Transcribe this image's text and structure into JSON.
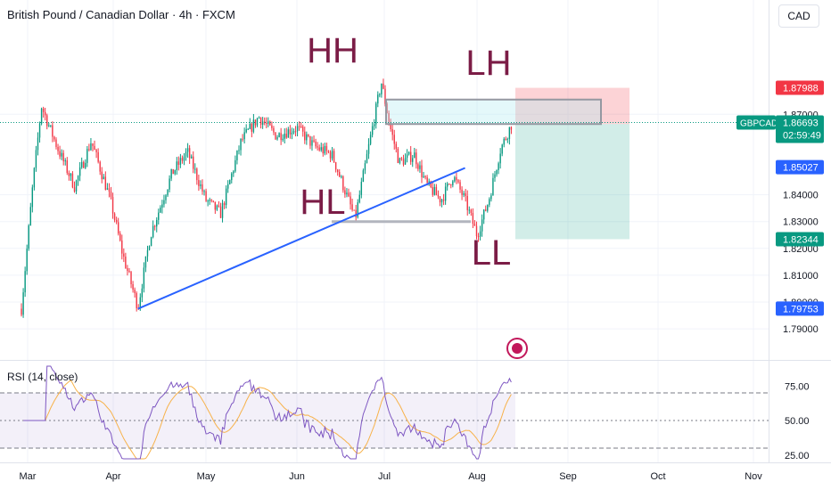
{
  "header": {
    "title": "British Pound / Canadian Dollar · 4h · FXCM",
    "currency": "CAD"
  },
  "rsi": {
    "label": "RSI (14, close)",
    "ticks": [
      "75.00",
      "50.00",
      "25.00"
    ]
  },
  "chart_data": {
    "type": "candlestick",
    "symbol": "GBPCAD",
    "timeframe": "4h",
    "x_tick_labels": [
      "Mar",
      "Apr",
      "May",
      "Jun",
      "Jul",
      "Aug",
      "Sep",
      "Oct",
      "Nov"
    ],
    "y_tick_labels": [
      "1.87000",
      "1.84000",
      "1.83000",
      "1.82000",
      "1.81000",
      "1.80000",
      "1.79000"
    ],
    "ylim": [
      1.785,
      1.885
    ],
    "price_path": [
      {
        "date": "Feb 26",
        "price": 1.7975
      },
      {
        "date": "Mar 3",
        "price": 1.845
      },
      {
        "date": "Mar 6",
        "price": 1.873
      },
      {
        "date": "Mar 12",
        "price": 1.857
      },
      {
        "date": "Mar 18",
        "price": 1.843
      },
      {
        "date": "Mar 24",
        "price": 1.86
      },
      {
        "date": "Mar 31",
        "price": 1.838
      },
      {
        "date": "Apr 4",
        "price": 1.818
      },
      {
        "date": "Apr 9",
        "price": 1.798
      },
      {
        "date": "Apr 13",
        "price": 1.825
      },
      {
        "date": "Apr 20",
        "price": 1.848
      },
      {
        "date": "Apr 25",
        "price": 1.856
      },
      {
        "date": "May 1",
        "price": 1.838
      },
      {
        "date": "May 6",
        "price": 1.833
      },
      {
        "date": "May 13",
        "price": 1.86
      },
      {
        "date": "May 19",
        "price": 1.869
      },
      {
        "date": "May 25",
        "price": 1.862
      },
      {
        "date": "Jun 1",
        "price": 1.865
      },
      {
        "date": "Jun 7",
        "price": 1.858
      },
      {
        "date": "Jun 13",
        "price": 1.855
      },
      {
        "date": "Jun 18",
        "price": 1.84
      },
      {
        "date": "Jun 21",
        "price": 1.831
      },
      {
        "date": "Jun 26",
        "price": 1.86
      },
      {
        "date": "Jun 30",
        "price": 1.882
      },
      {
        "date": "Jul 3",
        "price": 1.865
      },
      {
        "date": "Jul 6",
        "price": 1.852
      },
      {
        "date": "Jul 11",
        "price": 1.855
      },
      {
        "date": "Jul 15",
        "price": 1.844
      },
      {
        "date": "Jul 20",
        "price": 1.838
      },
      {
        "date": "Jul 24",
        "price": 1.847
      },
      {
        "date": "Jul 28",
        "price": 1.838
      },
      {
        "date": "Aug 1",
        "price": 1.825
      },
      {
        "date": "Aug 5",
        "price": 1.838
      },
      {
        "date": "Aug 9",
        "price": 1.857
      },
      {
        "date": "Aug 13",
        "price": 1.8669
      }
    ],
    "annotations": [
      "HH",
      "LH",
      "HL",
      "LL"
    ],
    "position": {
      "entry": 1.86637,
      "stop": 1.87988,
      "target": 1.82344
    },
    "price_labels": [
      {
        "text": "1.87988",
        "value": 1.87988,
        "color": "#f23645"
      },
      {
        "text": "1.86637",
        "value": 1.86637,
        "color": "#787b86"
      },
      {
        "text": "1.85027",
        "value": 1.85027,
        "color": "#2962ff"
      },
      {
        "text": "1.82344",
        "value": 1.82344,
        "color": "#089981"
      },
      {
        "text": "1.79753",
        "value": 1.79753,
        "color": "#2962ff"
      }
    ],
    "current_price_label": {
      "symbol": "GBPCAD",
      "price": "1.86693",
      "countdown": "02:59:49",
      "value": 1.86693,
      "color": "#089981"
    },
    "levels": [
      {
        "name": "HH-LH",
        "value": 1.8755
      },
      {
        "name": "HL-LL",
        "value": 1.83
      }
    ],
    "trendline": [
      {
        "date": "Apr 9",
        "price": 1.7975
      },
      {
        "date": "Jul 28",
        "price": 1.85
      }
    ],
    "rsi_range": [
      0,
      100
    ],
    "rsi_bands": [
      70,
      50,
      30
    ],
    "colors": {
      "up": "#089981",
      "down": "#f23645",
      "trendline": "#2962ff",
      "annotation": "#7b1c46",
      "rsi": "#7e57c2",
      "rsi_ma": "#f7b24a"
    }
  }
}
